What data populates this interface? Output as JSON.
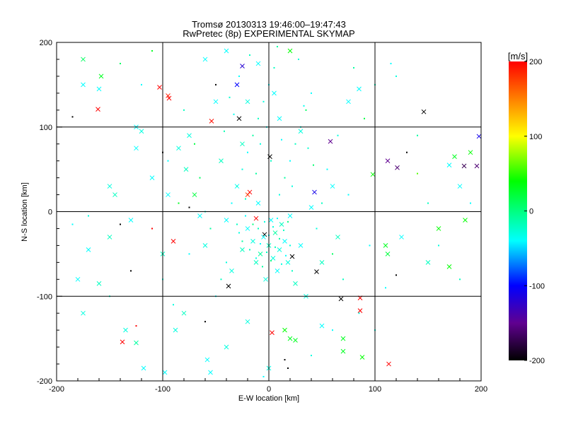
{
  "chart_data": {
    "type": "scatter",
    "title": "Tromsø 20130313 19:46:00–19:47:43",
    "subtitle": "RwPretec (8p) EXPERIMENTAL SKYMAP",
    "xlabel": "E-W location [km]",
    "ylabel": "N-S location [km]",
    "xlim": [
      -200,
      200
    ],
    "ylim": [
      -200,
      200
    ],
    "xticks": [
      "-200",
      "-100",
      "0",
      "100",
      "200"
    ],
    "yticks": [
      "-200",
      "-100",
      "0",
      "100",
      "200"
    ],
    "grid": true,
    "colorbar": {
      "label": "[m/s]",
      "range": [
        -200,
        200
      ],
      "ticks": [
        "200",
        "100",
        "0",
        "-100",
        "-200"
      ],
      "stops": [
        {
          "v": 200,
          "color": "#ff0000"
        },
        {
          "v": 150,
          "color": "#ff8000"
        },
        {
          "v": 100,
          "color": "#ffff00"
        },
        {
          "v": 40,
          "color": "#00ff00"
        },
        {
          "v": 0,
          "color": "#00ff80"
        },
        {
          "v": -40,
          "color": "#00ffff"
        },
        {
          "v": -100,
          "color": "#0000ff"
        },
        {
          "v": -150,
          "color": "#600090"
        },
        {
          "v": -200,
          "color": "#000000"
        }
      ]
    },
    "point_fields": [
      "x_km",
      "y_km",
      "velocity_ms",
      "marker(0=dot,1=cross)"
    ],
    "points": [
      [
        -161,
        121,
        200,
        1
      ],
      [
        -103,
        147,
        200,
        1
      ],
      [
        -94,
        134,
        200,
        1
      ],
      [
        -95,
        137,
        190,
        1
      ],
      [
        -54,
        107,
        195,
        1
      ],
      [
        146,
        118,
        -200,
        1
      ],
      [
        113,
        -180,
        200,
        1
      ],
      [
        -138,
        -154,
        200,
        1
      ],
      [
        -90,
        -35,
        200,
        1
      ],
      [
        3,
        -143,
        200,
        1
      ],
      [
        -18,
        23,
        200,
        1
      ],
      [
        -20,
        20,
        180,
        1
      ],
      [
        86,
        -102,
        200,
        1
      ],
      [
        86,
        -117,
        200,
        1
      ],
      [
        198,
        89,
        -110,
        1
      ],
      [
        196,
        54,
        -160,
        1
      ],
      [
        184,
        54,
        -170,
        1
      ],
      [
        121,
        52,
        -160,
        1
      ],
      [
        112,
        60,
        -150,
        1
      ],
      [
        58,
        83,
        -150,
        1
      ],
      [
        -25,
        172,
        -120,
        1
      ],
      [
        -30,
        150,
        -100,
        1
      ],
      [
        43,
        23,
        -110,
        1
      ],
      [
        -38,
        -88,
        -200,
        1
      ],
      [
        45,
        -71,
        -200,
        1
      ],
      [
        22,
        -53,
        -200,
        1
      ],
      [
        68,
        -103,
        -200,
        1
      ],
      [
        1,
        65,
        -200,
        1
      ],
      [
        -28,
        110,
        -200,
        1
      ],
      [
        -4,
        -27,
        -200,
        1
      ],
      [
        -175,
        180,
        10,
        1
      ],
      [
        -158,
        160,
        30,
        1
      ],
      [
        -160,
        145,
        -40,
        1
      ],
      [
        -180,
        -80,
        -40,
        1
      ],
      [
        -175,
        -120,
        -30,
        1
      ],
      [
        -160,
        -85,
        -20,
        1
      ],
      [
        -135,
        -140,
        -30,
        1
      ],
      [
        -125,
        -155,
        -10,
        1
      ],
      [
        -118,
        -185,
        -40,
        1
      ],
      [
        -98,
        -190,
        -40,
        1
      ],
      [
        -88,
        -140,
        -30,
        1
      ],
      [
        -80,
        -120,
        -20,
        1
      ],
      [
        -58,
        -175,
        -40,
        1
      ],
      [
        -55,
        -190,
        -40,
        1
      ],
      [
        -40,
        -160,
        -30,
        1
      ],
      [
        -150,
        30,
        -30,
        1
      ],
      [
        -145,
        20,
        -20,
        1
      ],
      [
        -130,
        -10,
        -40,
        1
      ],
      [
        -125,
        75,
        -40,
        1
      ],
      [
        -110,
        40,
        -40,
        1
      ],
      [
        -100,
        -50,
        -20,
        1
      ],
      [
        -95,
        20,
        -40,
        1
      ],
      [
        -85,
        75,
        -30,
        1
      ],
      [
        -78,
        50,
        -20,
        1
      ],
      [
        -70,
        20,
        20,
        1
      ],
      [
        -65,
        -5,
        -40,
        1
      ],
      [
        -60,
        -40,
        -30,
        1
      ],
      [
        -50,
        130,
        -40,
        1
      ],
      [
        -45,
        60,
        -20,
        1
      ],
      [
        -40,
        -10,
        -40,
        1
      ],
      [
        -35,
        -70,
        -30,
        1
      ],
      [
        -30,
        30,
        -40,
        1
      ],
      [
        -25,
        -45,
        -20,
        1
      ],
      [
        -20,
        -20,
        -40,
        1
      ],
      [
        -15,
        -35,
        -30,
        1
      ],
      [
        -12,
        -60,
        -20,
        1
      ],
      [
        -10,
        10,
        -40,
        1
      ],
      [
        -8,
        -50,
        -10,
        1
      ],
      [
        -5,
        -30,
        -40,
        1
      ],
      [
        -3,
        -80,
        -30,
        1
      ],
      [
        0,
        -40,
        -20,
        1
      ],
      [
        2,
        -10,
        -40,
        1
      ],
      [
        4,
        -55,
        -30,
        1
      ],
      [
        6,
        -25,
        -10,
        1
      ],
      [
        8,
        -70,
        -40,
        1
      ],
      [
        10,
        -45,
        -30,
        1
      ],
      [
        12,
        -15,
        -20,
        1
      ],
      [
        15,
        -35,
        -40,
        1
      ],
      [
        18,
        -60,
        -30,
        1
      ],
      [
        20,
        -5,
        -40,
        1
      ],
      [
        25,
        -85,
        -20,
        1
      ],
      [
        30,
        -40,
        -40,
        1
      ],
      [
        35,
        -100,
        -30,
        1
      ],
      [
        40,
        5,
        -40,
        1
      ],
      [
        50,
        -60,
        -20,
        1
      ],
      [
        60,
        30,
        -40,
        1
      ],
      [
        65,
        -30,
        -20,
        1
      ],
      [
        70,
        -150,
        30,
        1
      ],
      [
        70,
        -165,
        30,
        1
      ],
      [
        88,
        -172,
        40,
        1
      ],
      [
        98,
        44,
        40,
        1
      ],
      [
        110,
        -40,
        30,
        1
      ],
      [
        112,
        -50,
        20,
        1
      ],
      [
        125,
        -30,
        -40,
        1
      ],
      [
        150,
        -60,
        -20,
        1
      ],
      [
        160,
        -20,
        40,
        1
      ],
      [
        170,
        -65,
        40,
        1
      ],
      [
        175,
        65,
        30,
        1
      ],
      [
        180,
        30,
        -40,
        1
      ],
      [
        170,
        55,
        -40,
        1
      ],
      [
        185,
        -10,
        40,
        1
      ],
      [
        190,
        70,
        40,
        1
      ],
      [
        20,
        -150,
        30,
        1
      ],
      [
        25,
        -152,
        30,
        1
      ],
      [
        15,
        -140,
        40,
        1
      ],
      [
        0,
        -185,
        -30,
        1
      ],
      [
        -20,
        -130,
        -30,
        1
      ],
      [
        50,
        -135,
        -40,
        1
      ],
      [
        -150,
        -30,
        -20,
        1
      ],
      [
        -170,
        -45,
        -40,
        1
      ],
      [
        -125,
        100,
        -40,
        1
      ],
      [
        -120,
        95,
        -30,
        1
      ],
      [
        -10,
        175,
        -40,
        1
      ],
      [
        20,
        190,
        40,
        1
      ],
      [
        -40,
        190,
        -40,
        1
      ],
      [
        -20,
        130,
        -30,
        1
      ],
      [
        10,
        110,
        -40,
        1
      ],
      [
        -25,
        80,
        -20,
        1
      ],
      [
        30,
        95,
        -30,
        1
      ],
      [
        5,
        140,
        -40,
        1
      ],
      [
        -60,
        180,
        -40,
        1
      ],
      [
        -75,
        90,
        -30,
        1
      ],
      [
        -175,
        150,
        -40,
        1
      ],
      [
        75,
        130,
        -40,
        1
      ],
      [
        85,
        145,
        -40,
        1
      ],
      [
        -12,
        -8,
        200,
        1
      ],
      [
        -30,
        -15,
        -20,
        0
      ],
      [
        -28,
        -25,
        -30,
        0
      ],
      [
        -25,
        -35,
        -10,
        0
      ],
      [
        -22,
        -5,
        -40,
        0
      ],
      [
        -18,
        -45,
        -20,
        0
      ],
      [
        -15,
        -15,
        0,
        0
      ],
      [
        -12,
        -55,
        -30,
        0
      ],
      [
        -10,
        -20,
        -20,
        0
      ],
      [
        -8,
        -38,
        -40,
        0
      ],
      [
        -6,
        -65,
        -10,
        0
      ],
      [
        -4,
        -12,
        -30,
        0
      ],
      [
        -2,
        -48,
        -20,
        0
      ],
      [
        0,
        -28,
        -40,
        0
      ],
      [
        2,
        -58,
        0,
        0
      ],
      [
        4,
        -18,
        -30,
        0
      ],
      [
        6,
        -42,
        -20,
        0
      ],
      [
        8,
        -8,
        -40,
        0
      ],
      [
        10,
        -32,
        -10,
        0
      ],
      [
        12,
        -62,
        -30,
        0
      ],
      [
        14,
        -22,
        -20,
        0
      ],
      [
        16,
        -52,
        -40,
        0
      ],
      [
        18,
        -12,
        0,
        0
      ],
      [
        20,
        -40,
        -30,
        0
      ],
      [
        22,
        -70,
        -20,
        0
      ],
      [
        -35,
        10,
        -40,
        0
      ],
      [
        -30,
        30,
        -20,
        0
      ],
      [
        -25,
        50,
        -30,
        0
      ],
      [
        -20,
        70,
        -40,
        0
      ],
      [
        -15,
        90,
        -10,
        0
      ],
      [
        -10,
        110,
        -20,
        0
      ],
      [
        -5,
        130,
        -30,
        0
      ],
      [
        0,
        150,
        -40,
        0
      ],
      [
        5,
        170,
        -20,
        0
      ],
      [
        10,
        20,
        -30,
        0
      ],
      [
        15,
        40,
        -10,
        0
      ],
      [
        20,
        60,
        -40,
        0
      ],
      [
        25,
        80,
        -20,
        0
      ],
      [
        30,
        100,
        -30,
        0
      ],
      [
        35,
        120,
        10,
        0
      ],
      [
        40,
        140,
        -40,
        0
      ],
      [
        -40,
        -60,
        -30,
        0
      ],
      [
        -45,
        -80,
        -20,
        0
      ],
      [
        -50,
        -100,
        -40,
        0
      ],
      [
        -55,
        -20,
        -10,
        0
      ],
      [
        -60,
        0,
        -30,
        0
      ],
      [
        -65,
        40,
        10,
        0
      ],
      [
        -70,
        80,
        20,
        0
      ],
      [
        -75,
        -50,
        -40,
        0
      ],
      [
        -80,
        120,
        -20,
        0
      ],
      [
        -85,
        10,
        30,
        0
      ],
      [
        -90,
        -110,
        -30,
        0
      ],
      [
        -95,
        60,
        -40,
        0
      ],
      [
        45,
        -20,
        -30,
        0
      ],
      [
        50,
        10,
        -20,
        0
      ],
      [
        55,
        50,
        -40,
        0
      ],
      [
        60,
        -50,
        10,
        0
      ],
      [
        65,
        90,
        -30,
        0
      ],
      [
        70,
        -80,
        -20,
        0
      ],
      [
        75,
        20,
        -40,
        0
      ],
      [
        80,
        170,
        -10,
        0
      ],
      [
        85,
        -120,
        -30,
        0
      ],
      [
        90,
        110,
        20,
        0
      ],
      [
        95,
        -40,
        -40,
        0
      ],
      [
        100,
        150,
        -20,
        0
      ],
      [
        -33,
        115,
        -35,
        0
      ],
      [
        -37,
        135,
        -25,
        0
      ],
      [
        -42,
        95,
        -15,
        0
      ],
      [
        33,
        125,
        -35,
        0
      ],
      [
        37,
        75,
        -25,
        0
      ],
      [
        42,
        55,
        5,
        0
      ],
      [
        -28,
        160,
        -40,
        0
      ],
      [
        28,
        180,
        -30,
        0
      ],
      [
        -18,
        185,
        -20,
        0
      ],
      [
        8,
        195,
        -10,
        0
      ],
      [
        -2,
        100,
        -40,
        0
      ],
      [
        -8,
        80,
        -30,
        0
      ],
      [
        2,
        60,
        -20,
        0
      ],
      [
        12,
        85,
        -40,
        0
      ],
      [
        -12,
        45,
        -10,
        0
      ],
      [
        22,
        30,
        -30,
        0
      ],
      [
        -22,
        15,
        -20,
        0
      ],
      [
        -120,
        150,
        -40,
        0
      ],
      [
        -140,
        175,
        10,
        0
      ],
      [
        -110,
        190,
        30,
        0
      ],
      [
        -185,
        -15,
        -40,
        0
      ],
      [
        -170,
        -5,
        -30,
        0
      ],
      [
        -150,
        -100,
        -20,
        0
      ],
      [
        -130,
        -70,
        -200,
        0
      ],
      [
        -125,
        -135,
        200,
        0
      ],
      [
        -185,
        112,
        -200,
        0
      ],
      [
        110,
        -90,
        -40,
        0
      ],
      [
        130,
        70,
        -200,
        0
      ],
      [
        140,
        45,
        60,
        0
      ],
      [
        120,
        -75,
        -200,
        0
      ],
      [
        160,
        -40,
        -30,
        0
      ],
      [
        180,
        -80,
        -20,
        0
      ],
      [
        115,
        175,
        -40,
        0
      ],
      [
        120,
        160,
        -30,
        0
      ],
      [
        150,
        10,
        -20,
        0
      ],
      [
        140,
        90,
        -10,
        0
      ],
      [
        190,
        10,
        -40,
        0
      ],
      [
        100,
        -140,
        -30,
        0
      ],
      [
        -60,
        -130,
        -200,
        0
      ],
      [
        -100,
        -80,
        -30,
        0
      ],
      [
        -110,
        -20,
        200,
        0
      ],
      [
        -140,
        -15,
        -200,
        0
      ],
      [
        -75,
        5,
        -200,
        0
      ],
      [
        -100,
        70,
        -200,
        0
      ],
      [
        -50,
        150,
        -200,
        0
      ],
      [
        15,
        -175,
        -200,
        0
      ],
      [
        18,
        -185,
        -200,
        0
      ],
      [
        60,
        -140,
        -40,
        0
      ],
      [
        40,
        -170,
        -30,
        0
      ],
      [
        -5,
        -195,
        -40,
        0
      ]
    ]
  }
}
